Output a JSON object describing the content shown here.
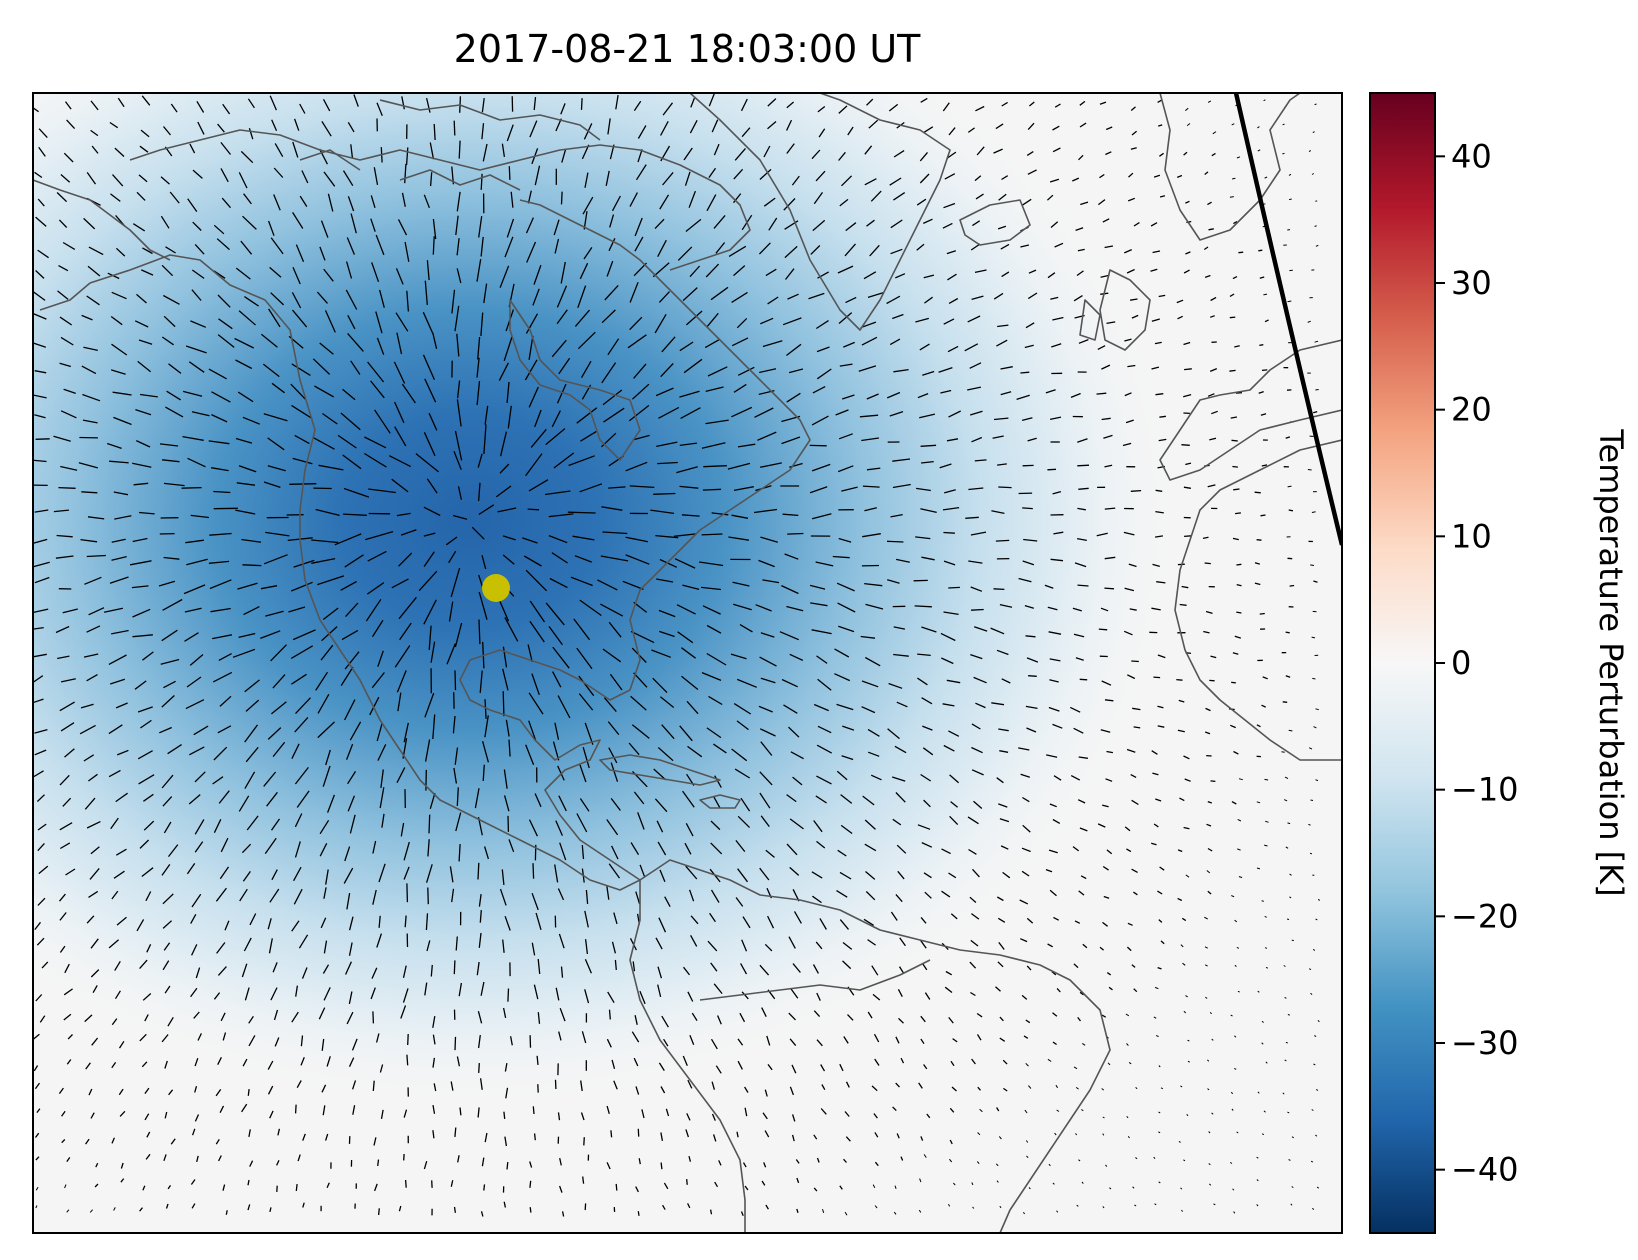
{
  "title": "2017-08-21 18:03:00 UT",
  "colorbar": {
    "label": "Temperature Perturbation [K]",
    "range": [
      -45,
      45
    ],
    "ticks": [
      40,
      30,
      20,
      10,
      0,
      -10,
      -20,
      -30,
      -40
    ],
    "tick_labels": [
      "40",
      "30",
      "20",
      "10",
      "0",
      "−10",
      "−20",
      "−30",
      "−40"
    ],
    "colormap": "RdBu_r",
    "colors": [
      "#053061",
      "#2166ac",
      "#4393c3",
      "#92c5de",
      "#d1e5f0",
      "#f7f7f7",
      "#fddbc7",
      "#f4a582",
      "#d6604d",
      "#b2182b",
      "#67001f"
    ]
  },
  "map": {
    "region": "North Atlantic / Americas",
    "colors": {
      "coastline": "#555555",
      "terminator": "#000000",
      "marker": "#c8c000",
      "background": "#f5f5f5"
    },
    "features": [
      "coastlines",
      "wind-vectors",
      "terminator-line",
      "eclipse-center-marker"
    ]
  },
  "chart_data": {
    "type": "heatmap",
    "title": "2017-08-21 18:03:00 UT",
    "zlabel": "Temperature Perturbation [K]",
    "zlim": [
      -45,
      45
    ],
    "field_summary": {
      "min_value_approx": -38,
      "max_value_approx": 0,
      "minimum_region": "central United States"
    }
  }
}
